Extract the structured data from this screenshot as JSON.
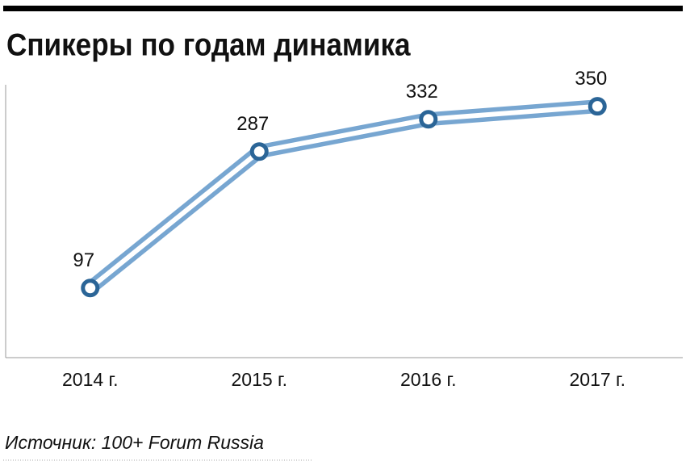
{
  "chart_data": {
    "type": "line",
    "title": "Спикеры по годам динамика",
    "categories": [
      "2014 г.",
      "2015 г.",
      "2016 г.",
      "2017 г."
    ],
    "series": [
      {
        "name": "Спикеры",
        "color": "#77a6d1",
        "marker_color": "#2b6597",
        "values": [
          97,
          287,
          332,
          350
        ]
      }
    ],
    "ylim": [
      0,
      380
    ],
    "data_labels": true,
    "source": "Источник: 100+ Forum Russia"
  }
}
